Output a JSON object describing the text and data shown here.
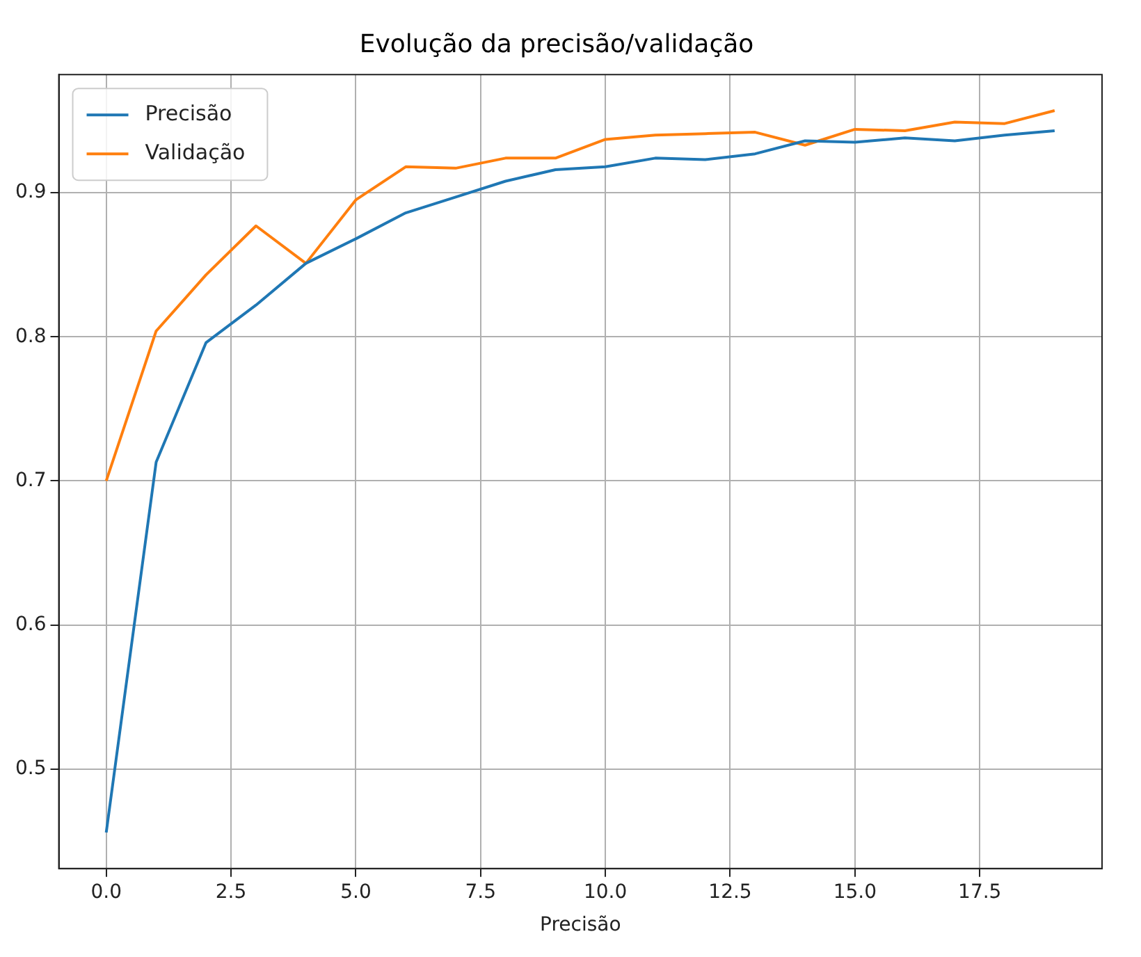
{
  "chart_data": {
    "type": "line",
    "title": "Evolução da precisão/validação",
    "xlabel": "Precisão",
    "x": [
      0,
      1,
      2,
      3,
      4,
      5,
      6,
      7,
      8,
      9,
      10,
      11,
      12,
      13,
      14,
      15,
      16,
      17,
      18,
      19
    ],
    "series": [
      {
        "name": "Precisão",
        "color": "#1f77b4",
        "values": [
          0.456,
          0.713,
          0.796,
          0.822,
          0.851,
          0.868,
          0.886,
          0.897,
          0.908,
          0.916,
          0.918,
          0.924,
          0.923,
          0.927,
          0.936,
          0.935,
          0.938,
          0.936,
          0.94,
          0.943
        ]
      },
      {
        "name": "Validação",
        "color": "#ff7f0e",
        "values": [
          0.7,
          0.804,
          0.843,
          0.877,
          0.851,
          0.895,
          0.918,
          0.917,
          0.924,
          0.924,
          0.937,
          0.94,
          0.941,
          0.942,
          0.933,
          0.944,
          0.943,
          0.949,
          0.948,
          0.957
        ]
      }
    ],
    "xlim": [
      -0.95,
      19.95
    ],
    "xticks": [
      {
        "value": 0,
        "label": "0.0"
      },
      {
        "value": 2.5,
        "label": "2.5"
      },
      {
        "value": 5,
        "label": "5.0"
      },
      {
        "value": 7.5,
        "label": "7.5"
      },
      {
        "value": 10,
        "label": "10.0"
      },
      {
        "value": 12.5,
        "label": "12.5"
      },
      {
        "value": 15,
        "label": "15.0"
      },
      {
        "value": 17.5,
        "label": "17.5"
      }
    ],
    "ylim": [
      0.431,
      0.982
    ],
    "yticks": [
      0.5,
      0.6,
      0.7,
      0.8,
      0.9
    ],
    "grid": true,
    "legend": "top left",
    "marker": "none",
    "line_style": "solid"
  }
}
